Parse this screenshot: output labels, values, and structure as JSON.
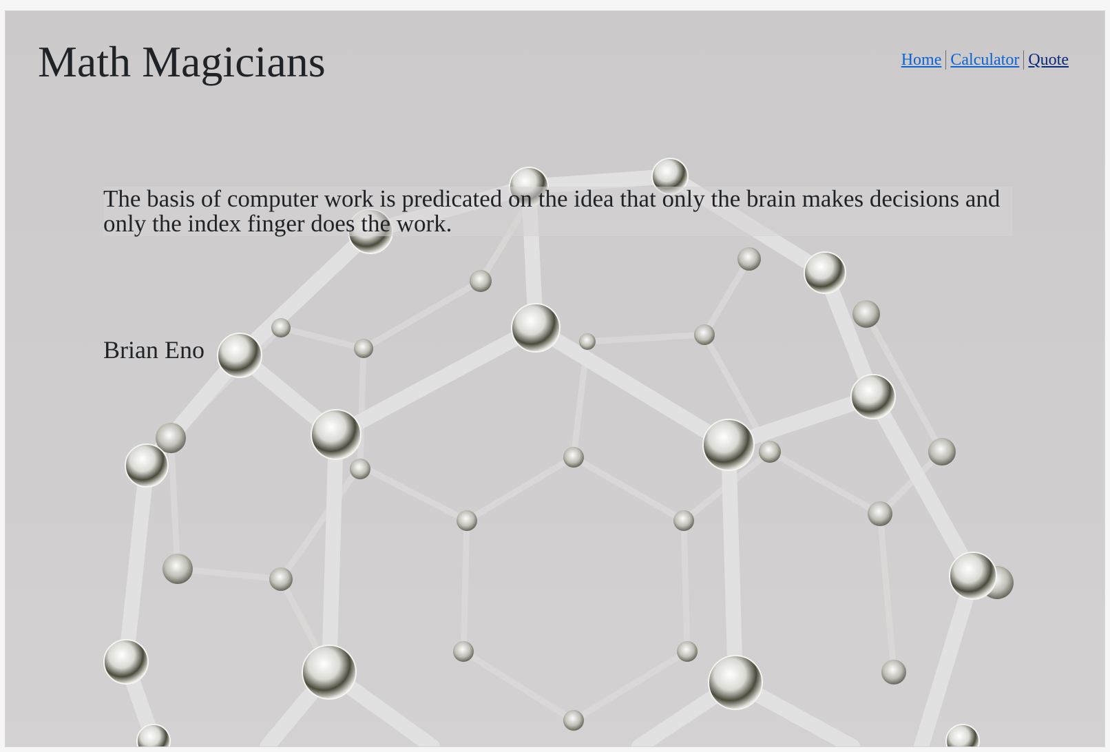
{
  "header": {
    "title": "Math Magicians",
    "nav": [
      {
        "label": "Home"
      },
      {
        "label": "Calculator"
      },
      {
        "label": "Quote"
      }
    ]
  },
  "main": {
    "quote": "The basis of computer work is predicated on the idea that only the brain makes decisions and only the index finger does the work.",
    "author": "Brian Eno"
  },
  "colors": {
    "background": "#cdcbcb",
    "text": "#1f2328",
    "link": "#0d63d6",
    "link_visited": "#0b2a7a"
  },
  "background_image": {
    "icon": "molecule-structure-icon"
  }
}
